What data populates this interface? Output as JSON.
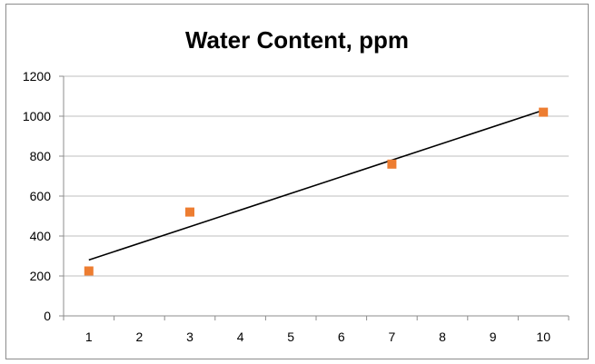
{
  "chart_data": {
    "type": "scatter",
    "title": "Water Content, ppm",
    "xlabel": "",
    "ylabel": "",
    "x_ticks": [
      1,
      2,
      3,
      4,
      5,
      6,
      7,
      8,
      9,
      10
    ],
    "y_ticks": [
      0,
      200,
      400,
      600,
      800,
      1000,
      1200
    ],
    "xlim": [
      0.5,
      10.5
    ],
    "ylim": [
      0,
      1200
    ],
    "grid": "horizontal",
    "legend": "none",
    "series": [
      {
        "marker": "square",
        "color": "#ED7D31",
        "points": [
          {
            "x": 1,
            "y": 225
          },
          {
            "x": 3,
            "y": 520
          },
          {
            "x": 7,
            "y": 760
          },
          {
            "x": 10,
            "y": 1020
          }
        ]
      }
    ],
    "trendline": {
      "type": "linear",
      "color": "#000000",
      "from": {
        "x": 1,
        "y": 280
      },
      "to": {
        "x": 10,
        "y": 1030
      }
    }
  }
}
